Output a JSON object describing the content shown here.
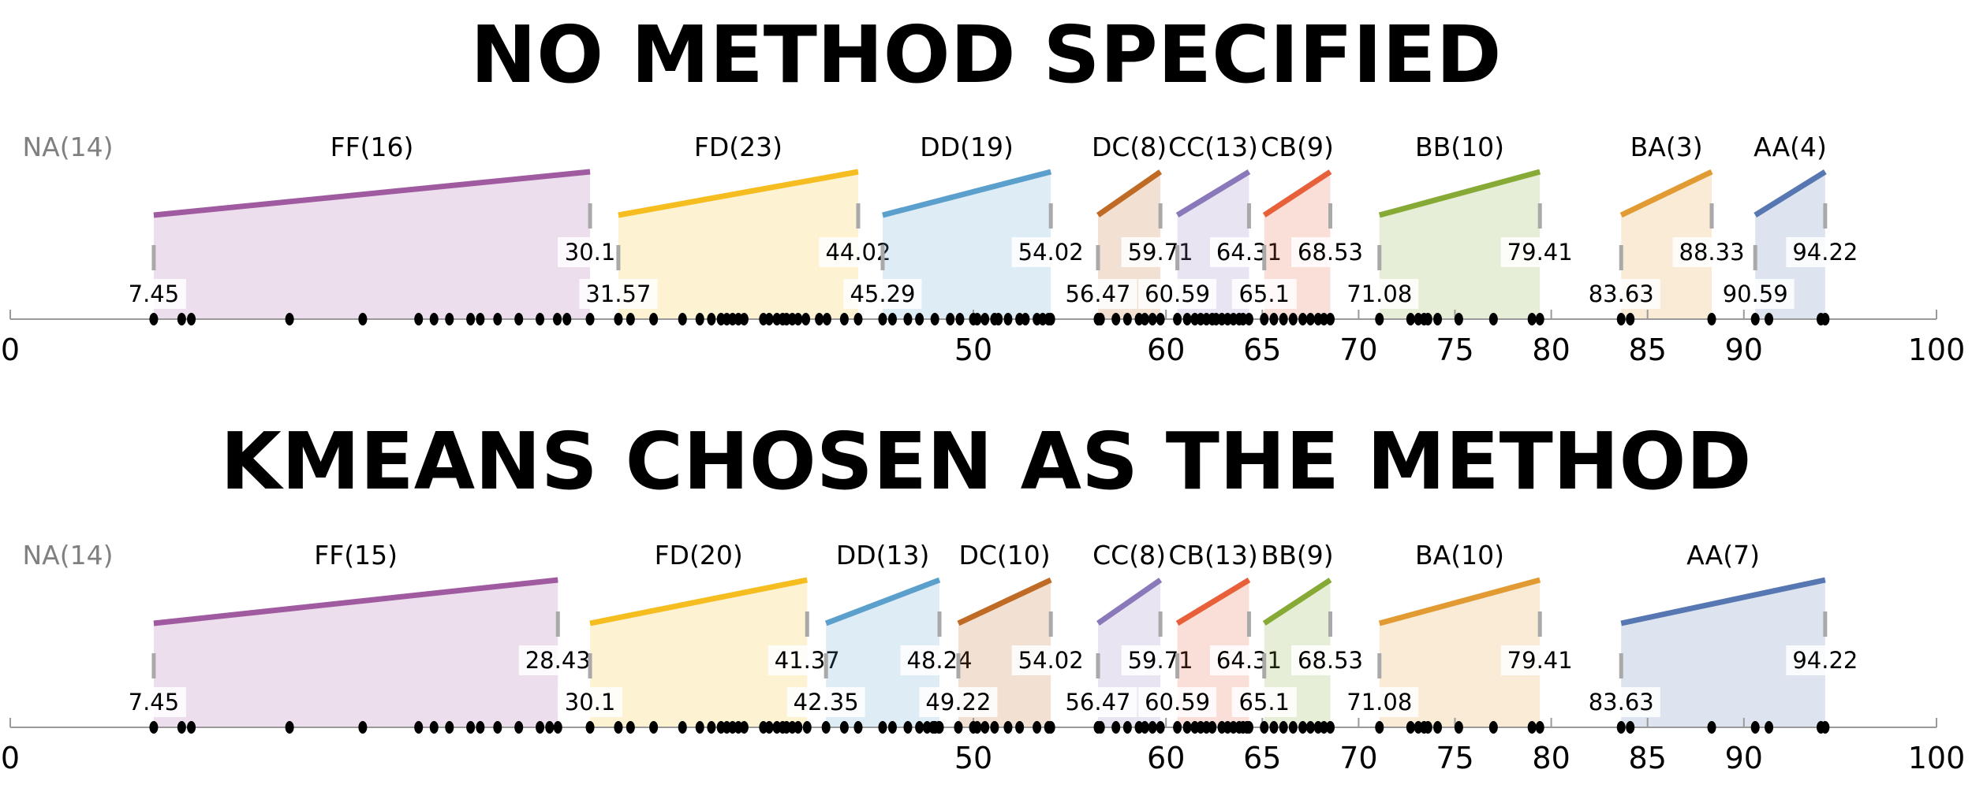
{
  "colors": {
    "FF": "#a05ba0",
    "FD": "#f5bd1f",
    "DD": "#5b9fcd",
    "DC": "#c06b25",
    "CC": "#8a79ba",
    "CB": "#e8603a",
    "BB": "#86aa35",
    "BA": "#e29b33",
    "AA": "#5677b1",
    "NA": "#808080",
    "axis": "#9a9a9a",
    "dot": "#000000"
  },
  "chart_data": [
    {
      "type": "scatter",
      "title": "NO METHOD SPECIFIED",
      "xlim": [
        0,
        100
      ],
      "ticks": [
        0,
        50,
        60,
        65,
        70,
        75,
        80,
        85,
        90,
        100
      ],
      "na_label": "NA(14)",
      "groups": [
        {
          "key": "FF",
          "label": "FF(16)",
          "min": 7.45,
          "max": 30.1
        },
        {
          "key": "FD",
          "label": "FD(23)",
          "min": 31.57,
          "max": 44.02
        },
        {
          "key": "DD",
          "label": "DD(19)",
          "min": 45.29,
          "max": 54.02
        },
        {
          "key": "DC",
          "label": "DC(8)",
          "min": 56.47,
          "max": 59.71
        },
        {
          "key": "CC",
          "label": "CC(13)",
          "min": 60.59,
          "max": 64.31
        },
        {
          "key": "CB",
          "label": "CB(9)",
          "min": 65.1,
          "max": 68.53
        },
        {
          "key": "BB",
          "label": "BB(10)",
          "min": 71.08,
          "max": 79.41
        },
        {
          "key": "BA",
          "label": "BA(3)",
          "min": 83.63,
          "max": 88.33
        },
        {
          "key": "AA",
          "label": "AA(4)",
          "min": 90.59,
          "max": 94.22
        }
      ],
      "points": [
        7.45,
        8.9,
        9.4,
        14.5,
        18.3,
        21.2,
        22.0,
        22.8,
        23.9,
        24.4,
        25.3,
        26.4,
        27.5,
        28.4,
        28.9,
        30.1,
        31.57,
        32.2,
        33.4,
        34.9,
        35.8,
        36.4,
        36.9,
        37.2,
        37.5,
        37.8,
        38.1,
        39.1,
        39.4,
        39.8,
        40.1,
        40.3,
        40.6,
        40.9,
        41.3,
        42.0,
        42.4,
        43.3,
        44.02,
        45.29,
        45.8,
        46.6,
        47.2,
        48.0,
        48.8,
        49.3,
        50.0,
        50.2,
        50.6,
        51.1,
        51.3,
        51.8,
        52.4,
        52.7,
        53.3,
        53.6,
        53.9,
        54.02,
        56.47,
        56.6,
        57.4,
        58.0,
        58.6,
        58.9,
        59.3,
        59.71,
        60.59,
        61.1,
        61.5,
        61.8,
        62.1,
        62.4,
        62.6,
        62.9,
        63.2,
        63.5,
        63.8,
        64.0,
        64.31,
        65.1,
        65.6,
        66.1,
        66.6,
        67.1,
        67.5,
        67.9,
        68.2,
        68.53,
        71.08,
        72.7,
        73.1,
        73.4,
        73.6,
        74.1,
        75.2,
        77.0,
        79.0,
        79.41,
        83.63,
        84.1,
        88.33,
        90.59,
        91.3,
        94.0,
        94.22
      ]
    },
    {
      "type": "scatter",
      "title": "KMEANS CHOSEN AS THE METHOD",
      "xlim": [
        0,
        100
      ],
      "ticks": [
        0,
        50,
        60,
        65,
        70,
        75,
        80,
        85,
        90,
        100
      ],
      "na_label": "NA(14)",
      "groups": [
        {
          "key": "FF",
          "label": "FF(15)",
          "min": 7.45,
          "max": 28.43
        },
        {
          "key": "FD",
          "label": "FD(20)",
          "min": 30.1,
          "max": 41.37
        },
        {
          "key": "DD",
          "label": "DD(13)",
          "min": 42.35,
          "max": 48.24
        },
        {
          "key": "DC",
          "label": "DC(10)",
          "min": 49.22,
          "max": 54.02
        },
        {
          "key": "CC",
          "label": "CC(8)",
          "min": 56.47,
          "max": 59.71
        },
        {
          "key": "CB",
          "label": "CB(13)",
          "min": 60.59,
          "max": 64.31
        },
        {
          "key": "BB",
          "label": "BB(9)",
          "min": 65.1,
          "max": 68.53
        },
        {
          "key": "BA",
          "label": "BA(10)",
          "min": 71.08,
          "max": 79.41
        },
        {
          "key": "AA",
          "label": "AA(7)",
          "min": 83.63,
          "max": 94.22
        }
      ],
      "points": [
        7.45,
        8.9,
        9.4,
        14.5,
        18.3,
        21.2,
        22.0,
        22.8,
        23.9,
        24.4,
        25.3,
        26.4,
        27.5,
        28.0,
        28.43,
        30.1,
        31.57,
        32.2,
        33.4,
        34.9,
        35.8,
        36.4,
        36.9,
        37.2,
        37.5,
        37.8,
        38.1,
        39.1,
        39.4,
        39.8,
        40.1,
        40.3,
        40.6,
        40.9,
        41.37,
        42.35,
        43.3,
        44.02,
        45.29,
        45.8,
        46.6,
        47.2,
        47.6,
        48.0,
        48.2,
        48.24,
        48.0,
        47.9,
        49.22,
        50.0,
        50.2,
        50.6,
        51.1,
        51.8,
        52.4,
        53.3,
        53.9,
        54.02,
        56.47,
        56.6,
        57.4,
        58.0,
        58.6,
        58.9,
        59.3,
        59.71,
        60.59,
        61.1,
        61.5,
        61.8,
        62.1,
        62.4,
        62.9,
        63.2,
        63.5,
        63.8,
        64.0,
        64.2,
        64.31,
        65.1,
        65.6,
        66.1,
        66.6,
        67.1,
        67.5,
        67.9,
        68.2,
        68.53,
        71.08,
        72.7,
        73.1,
        73.4,
        73.6,
        74.1,
        75.2,
        77.0,
        79.0,
        79.41,
        83.63,
        84.1,
        88.33,
        90.59,
        91.3,
        94.0,
        94.22
      ]
    }
  ]
}
